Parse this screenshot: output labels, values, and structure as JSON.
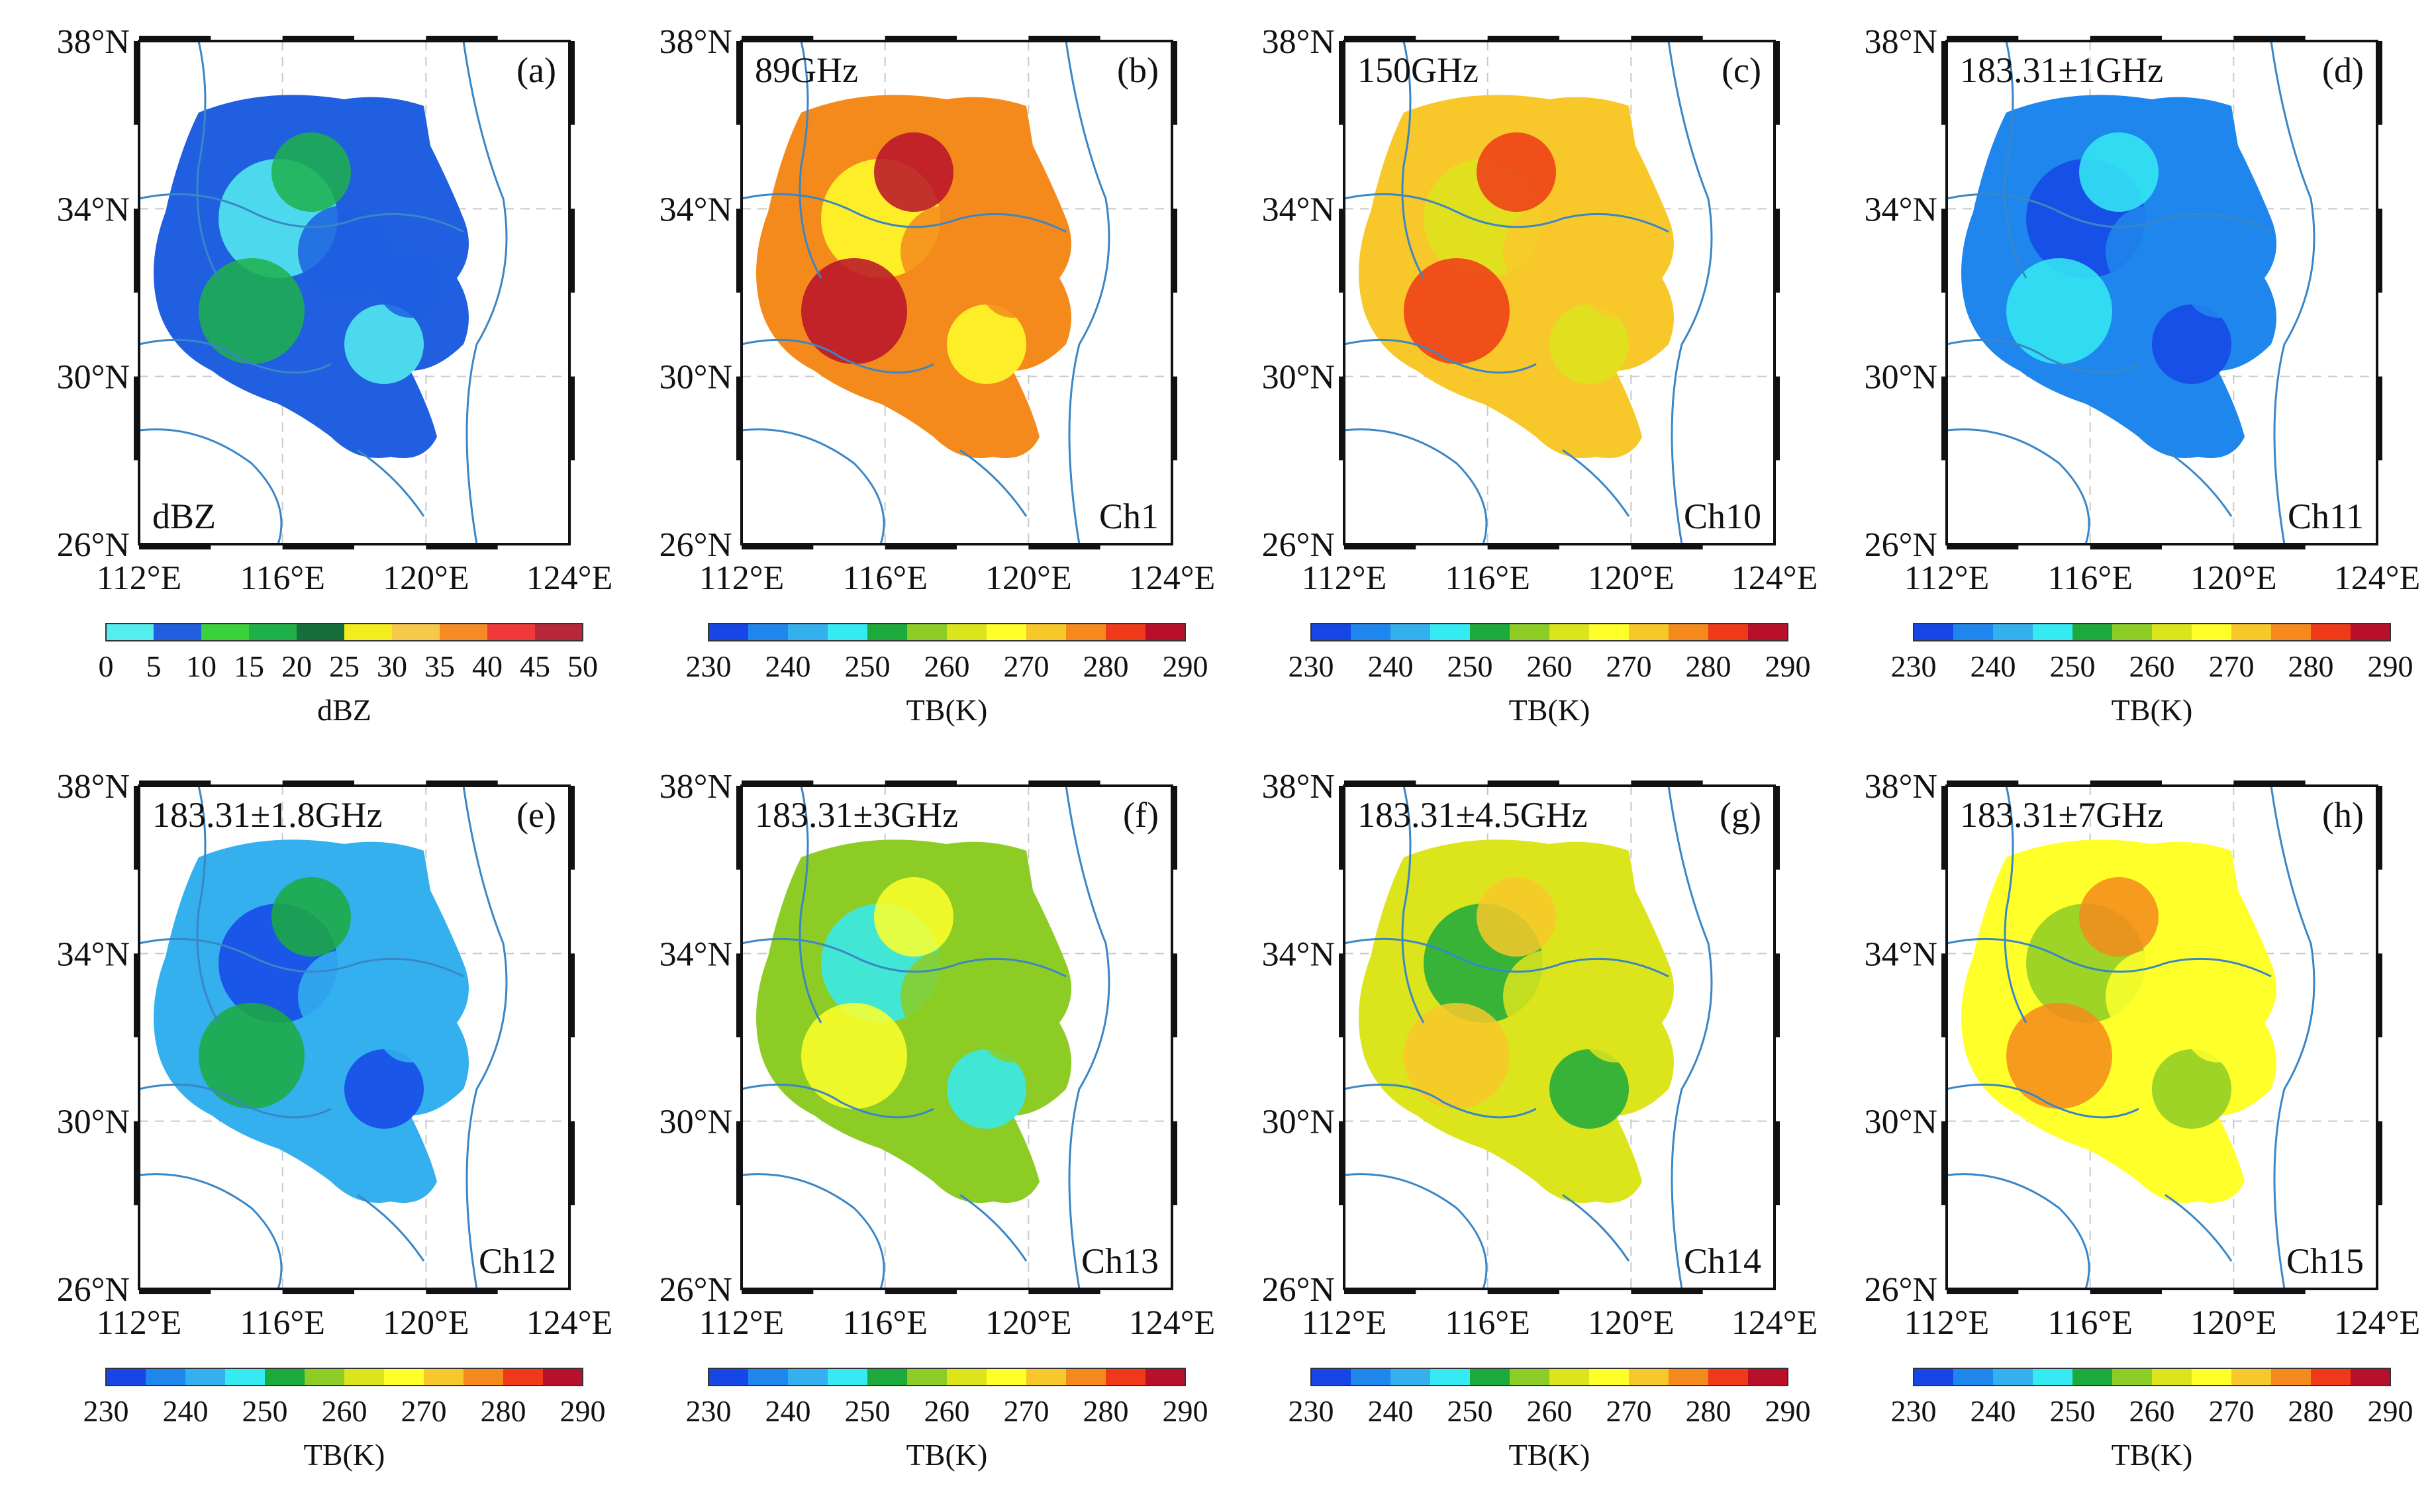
{
  "colors": {
    "dbz": [
      "#55eeee",
      "#1f5fe0",
      "#3ad23a",
      "#1fb04a",
      "#166f3a",
      "#f2ee1e",
      "#f6c94b",
      "#f58b24",
      "#f03a3a",
      "#b8283a"
    ],
    "tb": [
      "#1646e6",
      "#1e86ec",
      "#34b0ee",
      "#35eaf3",
      "#1caa3c",
      "#8ccc24",
      "#dce41c",
      "#ffff2a",
      "#f8c82a",
      "#f58a1c",
      "#ee3a18",
      "#b8102a"
    ],
    "river": "#3a86c6",
    "frame": "#111111"
  },
  "lat_labels": [
    "38°N",
    "34°N",
    "30°N",
    "26°N"
  ],
  "lon_labels": [
    "112°E",
    "116°E",
    "120°E",
    "124°E"
  ],
  "panels": [
    {
      "id": "a",
      "letter": "(a)",
      "title": "",
      "channel": "dBZ",
      "fill_index": 1,
      "field": "dbz",
      "cb_ticks": [
        "0",
        "5",
        "10",
        "15",
        "20",
        "25",
        "30",
        "35",
        "40",
        "45",
        "50"
      ],
      "cb_label": "dBZ"
    },
    {
      "id": "b",
      "letter": "(b)",
      "title": "89GHz",
      "channel": "Ch1",
      "fill_index": 9,
      "field": "tb",
      "cb_ticks": [
        "230",
        "240",
        "250",
        "260",
        "270",
        "280",
        "290"
      ],
      "cb_label": "TB(K)"
    },
    {
      "id": "c",
      "letter": "(c)",
      "title": "150GHz",
      "channel": "Ch10",
      "fill_index": 8,
      "field": "tb",
      "cb_ticks": [
        "230",
        "240",
        "250",
        "260",
        "270",
        "280",
        "290"
      ],
      "cb_label": "TB(K)"
    },
    {
      "id": "d",
      "letter": "(d)",
      "title": "183.31±1GHz",
      "channel": "Ch11",
      "fill_index": 1,
      "field": "tb",
      "cb_ticks": [
        "230",
        "240",
        "250",
        "260",
        "270",
        "280",
        "290"
      ],
      "cb_label": "TB(K)"
    },
    {
      "id": "e",
      "letter": "(e)",
      "title": "183.31±1.8GHz",
      "channel": "Ch12",
      "fill_index": 2,
      "field": "tb",
      "cb_ticks": [
        "230",
        "240",
        "250",
        "260",
        "270",
        "280",
        "290"
      ],
      "cb_label": "TB(K)"
    },
    {
      "id": "f",
      "letter": "(f)",
      "title": "183.31±3GHz",
      "channel": "Ch13",
      "fill_index": 5,
      "field": "tb",
      "cb_ticks": [
        "230",
        "240",
        "250",
        "260",
        "270",
        "280",
        "290"
      ],
      "cb_label": "TB(K)"
    },
    {
      "id": "g",
      "letter": "(g)",
      "title": "183.31±4.5GHz",
      "channel": "Ch14",
      "fill_index": 6,
      "field": "tb",
      "cb_ticks": [
        "230",
        "240",
        "250",
        "260",
        "270",
        "280",
        "290"
      ],
      "cb_label": "TB(K)"
    },
    {
      "id": "h",
      "letter": "(h)",
      "title": "183.31±7GHz",
      "channel": "Ch15",
      "fill_index": 7,
      "field": "tb",
      "cb_ticks": [
        "230",
        "240",
        "250",
        "260",
        "270",
        "280",
        "290"
      ],
      "cb_label": "TB(K)"
    }
  ]
}
